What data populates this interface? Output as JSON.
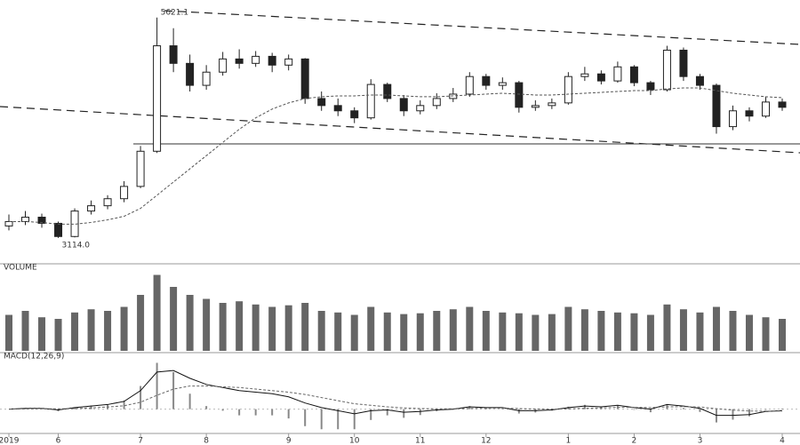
{
  "chart_data": {
    "type": "candlestick",
    "categories": [
      "2019",
      null,
      null,
      "6",
      null,
      null,
      null,
      null,
      "7",
      null,
      null,
      null,
      "8",
      null,
      null,
      null,
      null,
      "9",
      null,
      null,
      null,
      "10",
      null,
      null,
      null,
      "11",
      null,
      null,
      null,
      "12",
      null,
      null,
      null,
      null,
      "1",
      null,
      null,
      null,
      "2",
      null,
      null,
      null,
      "3",
      null,
      null,
      null,
      null,
      "4"
    ],
    "series": [
      {
        "color": "#222222",
        "values": [
          [
            3250,
            3380,
            3200,
            3300
          ],
          [
            3300,
            3420,
            3260,
            3350
          ],
          [
            3350,
            3390,
            3230,
            3280
          ],
          [
            3280,
            3300,
            3114.0,
            3130
          ],
          [
            3130,
            3450,
            3120,
            3420
          ],
          [
            3420,
            3540,
            3380,
            3480
          ],
          [
            3480,
            3600,
            3440,
            3560
          ],
          [
            3560,
            3760,
            3520,
            3700
          ],
          [
            3700,
            4160,
            3680,
            4100
          ],
          [
            4100,
            5621.1,
            4080,
            5300
          ],
          [
            5300,
            5500,
            5000,
            5100
          ],
          [
            5100,
            5200,
            4780,
            4850
          ],
          [
            4850,
            5080,
            4800,
            5000
          ],
          [
            5000,
            5230,
            4960,
            5150
          ],
          [
            5150,
            5260,
            5040,
            5100
          ],
          [
            5100,
            5240,
            5060,
            5180
          ],
          [
            5180,
            5220,
            5000,
            5080
          ],
          [
            5080,
            5200,
            5020,
            5150
          ],
          [
            5150,
            5160,
            4640,
            4700
          ],
          [
            4700,
            4780,
            4560,
            4620
          ],
          [
            4620,
            4700,
            4500,
            4560
          ],
          [
            4560,
            4600,
            4420,
            4480
          ],
          [
            4480,
            4920,
            4460,
            4860
          ],
          [
            4860,
            4880,
            4660,
            4700
          ],
          [
            4700,
            4740,
            4500,
            4560
          ],
          [
            4560,
            4680,
            4520,
            4620
          ],
          [
            4620,
            4760,
            4580,
            4700
          ],
          [
            4700,
            4820,
            4660,
            4750
          ],
          [
            4750,
            5000,
            4720,
            4950
          ],
          [
            4950,
            4980,
            4800,
            4850
          ],
          [
            4850,
            4940,
            4800,
            4880
          ],
          [
            4880,
            4900,
            4540,
            4600
          ],
          [
            4600,
            4680,
            4560,
            4620
          ],
          [
            4620,
            4700,
            4580,
            4650
          ],
          [
            4650,
            5000,
            4630,
            4950
          ],
          [
            4950,
            5060,
            4900,
            4980
          ],
          [
            4980,
            5020,
            4860,
            4900
          ],
          [
            4900,
            5120,
            4880,
            5060
          ],
          [
            5060,
            5080,
            4840,
            4880
          ],
          [
            4880,
            4900,
            4740,
            4800
          ],
          [
            4800,
            5300,
            4780,
            5250
          ],
          [
            5250,
            5280,
            4900,
            4950
          ],
          [
            4950,
            4980,
            4800,
            4850
          ],
          [
            4850,
            4870,
            4300,
            4380
          ],
          [
            4380,
            4620,
            4340,
            4560
          ],
          [
            4560,
            4600,
            4440,
            4500
          ],
          [
            4500,
            4720,
            4480,
            4660
          ],
          [
            4660,
            4700,
            4560,
            4600
          ]
        ]
      },
      {
        "color": "#555555",
        "values": [
          3300,
          3300,
          3290,
          3270,
          3270,
          3290,
          3320,
          3360,
          3450,
          3600,
          3750,
          3900,
          4050,
          4200,
          4350,
          4480,
          4580,
          4650,
          4700,
          4720,
          4730,
          4730,
          4740,
          4740,
          4730,
          4720,
          4720,
          4730,
          4740,
          4750,
          4760,
          4750,
          4740,
          4740,
          4750,
          4760,
          4770,
          4780,
          4790,
          4790,
          4810,
          4820,
          4820,
          4790,
          4760,
          4740,
          4720,
          4710
        ]
      }
    ],
    "ylim": [
      2870,
      5740
    ],
    "annotations": [
      "5621.1",
      "3114.0"
    ],
    "volume": {
      "title": "VOLUME",
      "color": "#666666",
      "ylim": [
        0,
        100
      ],
      "values": [
        45,
        50,
        42,
        40,
        48,
        52,
        50,
        55,
        70,
        95,
        80,
        70,
        65,
        60,
        62,
        58,
        55,
        57,
        60,
        50,
        48,
        45,
        55,
        48,
        46,
        47,
        50,
        52,
        55,
        50,
        48,
        47,
        45,
        46,
        55,
        52,
        50,
        48,
        47,
        45,
        58,
        52,
        48,
        55,
        50,
        45,
        42,
        40
      ]
    },
    "macd": {
      "title": "MACD(12,26,9)",
      "ylim": [
        -140,
        320
      ],
      "dif": [
        0,
        5,
        5,
        -5,
        10,
        20,
        30,
        50,
        120,
        240,
        250,
        200,
        160,
        140,
        120,
        110,
        100,
        80,
        40,
        10,
        -10,
        -30,
        -10,
        -5,
        -20,
        -15,
        -5,
        0,
        15,
        10,
        10,
        -10,
        -10,
        -5,
        10,
        20,
        15,
        25,
        10,
        0,
        30,
        20,
        5,
        -40,
        -40,
        -35,
        -15,
        -10
      ],
      "dea": [
        0,
        2,
        3,
        2,
        4,
        8,
        14,
        22,
        45,
        90,
        130,
        150,
        150,
        145,
        140,
        130,
        120,
        110,
        95,
        75,
        55,
        35,
        25,
        15,
        8,
        4,
        2,
        2,
        5,
        6,
        7,
        4,
        1,
        0,
        2,
        6,
        8,
        12,
        12,
        10,
        15,
        16,
        14,
        3,
        -6,
        -12,
        -13,
        -12
      ],
      "hist": [
        0,
        6,
        4,
        -14,
        12,
        24,
        32,
        56,
        150,
        300,
        240,
        100,
        20,
        -10,
        -40,
        -40,
        -40,
        -60,
        -110,
        -130,
        -130,
        -130,
        -70,
        -40,
        -56,
        -38,
        -14,
        -4,
        20,
        8,
        6,
        -28,
        -22,
        -10,
        16,
        28,
        14,
        26,
        -4,
        -20,
        30,
        8,
        -18,
        -86,
        -68,
        -46,
        -4,
        4
      ]
    }
  }
}
